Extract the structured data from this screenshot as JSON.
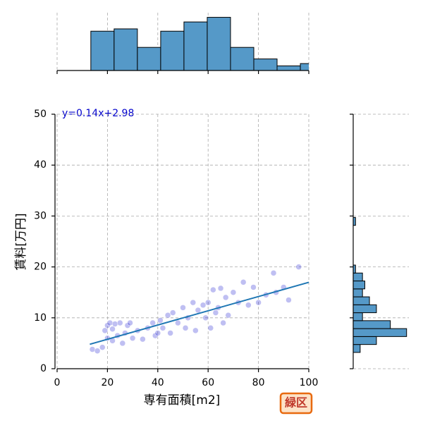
{
  "chart_data": [
    {
      "type": "scatter",
      "x_label": "専有面積[m2]",
      "y_label": "賃料[万円]",
      "annotation": "y=0.14x+2.98",
      "color": "#0000cc",
      "line_color": "#1f77b4",
      "x": [
        14,
        16,
        18,
        19,
        20,
        20,
        21,
        22,
        22,
        23,
        24,
        25,
        26,
        27,
        28,
        29,
        30,
        32,
        34,
        36,
        38,
        39,
        40,
        41,
        42,
        44,
        45,
        46,
        48,
        50,
        51,
        52,
        54,
        55,
        56,
        58,
        59,
        60,
        61,
        62,
        63,
        64,
        65,
        66,
        67,
        68,
        70,
        72,
        74,
        76,
        78,
        80,
        83,
        86,
        87,
        90,
        92,
        96
      ],
      "y": [
        3.8,
        3.5,
        4.2,
        7.5,
        8.5,
        6,
        9,
        5.5,
        7.8,
        8.8,
        6.5,
        9,
        5,
        7,
        8.5,
        9,
        6,
        7.5,
        5.8,
        8,
        9,
        6.5,
        7,
        9.5,
        8,
        10.5,
        7,
        11,
        9,
        12,
        8,
        10,
        13,
        7.5,
        11.5,
        12.5,
        10,
        13,
        8,
        15.5,
        11,
        12,
        15.8,
        9,
        14,
        10.5,
        15,
        13,
        17,
        12.5,
        16,
        13,
        14.5,
        18.8,
        15,
        16,
        13.5,
        20
      ],
      "fit": {
        "x": [
          13,
          100
        ],
        "y": [
          4.8,
          16.98
        ]
      },
      "xlim": [
        0,
        100
      ],
      "ylim": [
        0,
        50
      ],
      "xticks": [
        0,
        20,
        40,
        60,
        80,
        100
      ],
      "yticks": [
        0,
        10,
        20,
        30,
        40,
        50
      ],
      "grid": true
    },
    {
      "type": "histogram",
      "orientation": "vertical",
      "color": "#5599c8",
      "bins": [
        13.4,
        22.65,
        31.9,
        41.15,
        50.4,
        59.65,
        68.9,
        78.15,
        87.4,
        96.65,
        105.9
      ],
      "counts": [
        17,
        18,
        10,
        17,
        21,
        23,
        10,
        5,
        2,
        3
      ],
      "xlim": [
        0,
        100
      ],
      "ylim": [
        0,
        25
      ],
      "xticks": [
        0,
        20,
        40,
        60,
        80,
        100
      ],
      "grid": true
    },
    {
      "type": "histogram",
      "orientation": "horizontal",
      "color": "#5599c8",
      "bins": [
        3.2,
        4.76,
        6.32,
        7.88,
        9.44,
        11,
        12.56,
        14.12,
        15.68,
        17.24,
        18.8,
        20.36,
        21.92,
        23.48,
        25.04,
        26.6,
        28.16,
        29.72
      ],
      "counts": [
        3,
        10,
        23,
        16,
        4,
        10,
        7,
        4,
        5,
        4,
        1,
        0,
        0,
        0,
        0,
        0,
        1
      ],
      "ylim": [
        0,
        50
      ],
      "xlim": [
        0,
        24
      ],
      "yticks": [
        0,
        10,
        20,
        30,
        40,
        50
      ],
      "grid": true
    }
  ],
  "badge": "緑区"
}
